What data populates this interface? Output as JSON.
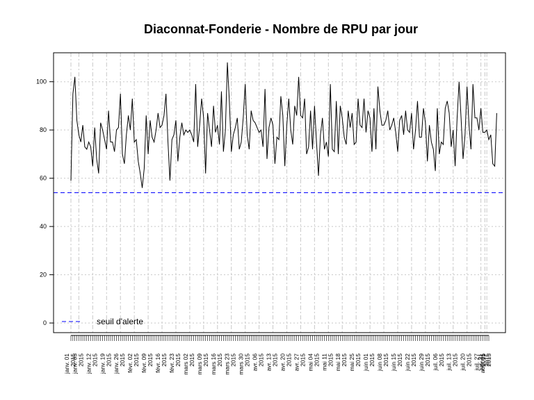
{
  "chart_data": {
    "type": "line",
    "title": "Diaconnat-Fonderie  - Nombre de RPU par jour",
    "xlabel": "",
    "ylabel": "",
    "ylim": [
      -4,
      112
    ],
    "x_range_days": [
      0,
      211
    ],
    "y_ticks": [
      0,
      20,
      40,
      60,
      80,
      100
    ],
    "grid": true,
    "threshold": {
      "label": "seuil d'alerte",
      "value": 54,
      "color": "#0000ff"
    },
    "legend_position": "bottom-left",
    "series_color": "#000000",
    "x_tick_labels": [
      {
        "day": 0,
        "lines": [
          "janv. 01",
          "2015"
        ]
      },
      {
        "day": 4,
        "lines": [
          "janv. 05",
          "2015"
        ]
      },
      {
        "day": 11,
        "lines": [
          "janv. 12",
          "2015"
        ]
      },
      {
        "day": 18,
        "lines": [
          "janv. 19",
          "2015"
        ]
      },
      {
        "day": 25,
        "lines": [
          "janv. 26",
          "2015"
        ]
      },
      {
        "day": 32,
        "lines": [
          "févr. 02",
          "2015"
        ]
      },
      {
        "day": 39,
        "lines": [
          "févr. 09",
          "2015"
        ]
      },
      {
        "day": 46,
        "lines": [
          "févr. 16",
          "2015"
        ]
      },
      {
        "day": 53,
        "lines": [
          "févr. 23",
          "2015"
        ]
      },
      {
        "day": 60,
        "lines": [
          "mars 02",
          "2015"
        ]
      },
      {
        "day": 67,
        "lines": [
          "mars 09",
          "2015"
        ]
      },
      {
        "day": 74,
        "lines": [
          "mars 16",
          "2015"
        ]
      },
      {
        "day": 81,
        "lines": [
          "mars 23",
          "2015"
        ]
      },
      {
        "day": 88,
        "lines": [
          "mars 30",
          "2015"
        ]
      },
      {
        "day": 95,
        "lines": [
          "avr. 06",
          "2015"
        ]
      },
      {
        "day": 102,
        "lines": [
          "avr. 13",
          "2015"
        ]
      },
      {
        "day": 109,
        "lines": [
          "avr. 20",
          "2015"
        ]
      },
      {
        "day": 116,
        "lines": [
          "avr. 27",
          "2015"
        ]
      },
      {
        "day": 123,
        "lines": [
          "mai 04",
          "2015"
        ]
      },
      {
        "day": 130,
        "lines": [
          "mai 11",
          "2015"
        ]
      },
      {
        "day": 137,
        "lines": [
          "mai 18",
          "2015"
        ]
      },
      {
        "day": 144,
        "lines": [
          "mai 25",
          "2015"
        ]
      },
      {
        "day": 151,
        "lines": [
          "juin 01",
          "2015"
        ]
      },
      {
        "day": 158,
        "lines": [
          "juin 08",
          "2015"
        ]
      },
      {
        "day": 165,
        "lines": [
          "juin 15",
          "2015"
        ]
      },
      {
        "day": 172,
        "lines": [
          "juin 22",
          "2015"
        ]
      },
      {
        "day": 179,
        "lines": [
          "juin 29",
          "2015"
        ]
      },
      {
        "day": 186,
        "lines": [
          "juil. 06",
          "2015"
        ]
      },
      {
        "day": 193,
        "lines": [
          "juil. 13",
          "2015"
        ]
      },
      {
        "day": 200,
        "lines": [
          "juil. 20",
          "2015"
        ]
      },
      {
        "day": 207,
        "lines": [
          "juil. 27",
          "2015"
        ]
      },
      {
        "day": 209,
        "lines": [
          "juil. 31",
          "2015"
        ]
      },
      {
        "day": 210,
        "lines": [
          "août 01",
          "2015"
        ]
      }
    ],
    "series": [
      {
        "values": [
          59,
          95,
          102,
          84,
          78,
          75,
          82,
          73,
          72,
          75,
          73,
          65,
          81,
          68,
          62,
          83,
          80,
          76,
          72,
          88,
          75,
          75,
          71,
          80,
          81,
          95,
          70,
          66,
          78,
          86,
          80,
          93,
          75,
          76,
          67,
          62,
          56,
          64,
          86,
          70,
          84,
          77,
          75,
          80,
          87,
          81,
          82,
          86,
          95,
          75,
          59,
          76,
          78,
          84,
          67,
          77,
          83,
          78,
          80,
          79,
          80,
          78,
          75,
          99,
          73,
          82,
          93,
          85,
          62,
          87,
          80,
          73,
          90,
          79,
          82,
          74,
          96,
          71,
          80,
          108,
          92,
          71,
          78,
          81,
          85,
          72,
          75,
          85,
          99,
          78,
          72,
          88,
          84,
          83,
          81,
          79,
          80,
          73,
          97,
          68,
          81,
          85,
          82,
          66,
          77,
          76,
          94,
          86,
          65,
          82,
          93,
          80,
          74,
          90,
          86,
          102,
          86,
          85,
          93,
          70,
          73,
          88,
          72,
          90,
          75,
          61,
          78,
          85,
          72,
          75,
          69,
          99,
          72,
          71,
          92,
          70,
          90,
          85,
          77,
          74,
          88,
          81,
          87,
          74,
          75,
          93,
          82,
          81,
          93,
          79,
          88,
          85,
          71,
          89,
          72,
          98,
          88,
          82,
          82,
          84,
          88,
          80,
          82,
          85,
          79,
          71,
          84,
          86,
          78,
          88,
          80,
          79,
          87,
          72,
          80,
          92,
          77,
          77,
          89,
          83,
          67,
          82,
          75,
          72,
          63,
          89,
          70,
          75,
          74,
          89,
          92,
          87,
          73,
          80,
          65,
          85,
          100,
          85,
          68,
          78,
          98,
          82,
          72,
          99,
          85,
          85,
          80,
          89,
          79,
          79,
          80,
          76,
          78,
          66,
          65,
          87
        ],
        "start_date": "2015-01-01",
        "step": "1 day"
      }
    ]
  }
}
